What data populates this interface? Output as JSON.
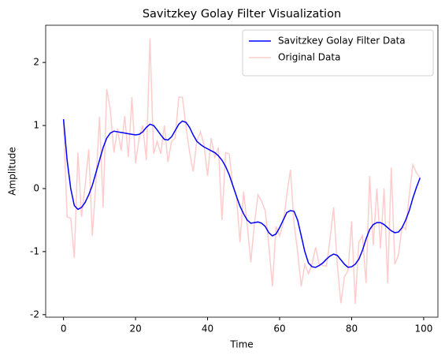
{
  "chart_data": {
    "type": "line",
    "title": "Savitzkey Golay Filter Visualization",
    "x_label": "Time",
    "y_label": "Amplitude",
    "x": [
      0,
      1,
      2,
      3,
      4,
      5,
      6,
      7,
      8,
      9,
      10,
      11,
      12,
      13,
      14,
      15,
      16,
      17,
      18,
      19,
      20,
      21,
      22,
      23,
      24,
      25,
      26,
      27,
      28,
      29,
      30,
      31,
      32,
      33,
      34,
      35,
      36,
      37,
      38,
      39,
      40,
      41,
      42,
      43,
      44,
      45,
      46,
      47,
      48,
      49,
      50,
      51,
      52,
      53,
      54,
      55,
      56,
      57,
      58,
      59,
      60,
      61,
      62,
      63,
      64,
      65,
      66,
      67,
      68,
      69,
      70,
      71,
      72,
      73,
      74,
      75,
      76,
      77,
      78,
      79,
      80,
      81,
      82,
      83,
      84,
      85,
      86,
      87,
      88,
      89,
      90,
      91,
      92,
      93,
      94,
      95,
      96,
      97,
      98,
      99
    ],
    "series": [
      {
        "name": "Savitzkey Golay Filter Data",
        "color": "#0000ff",
        "values": [
          1.1,
          0.45,
          0.0,
          -0.27,
          -0.33,
          -0.3,
          -0.22,
          -0.1,
          0.05,
          0.25,
          0.45,
          0.65,
          0.8,
          0.88,
          0.91,
          0.9,
          0.89,
          0.88,
          0.87,
          0.86,
          0.85,
          0.86,
          0.9,
          0.97,
          1.02,
          1.0,
          0.93,
          0.85,
          0.78,
          0.77,
          0.82,
          0.92,
          1.02,
          1.07,
          1.05,
          0.97,
          0.85,
          0.75,
          0.7,
          0.66,
          0.63,
          0.6,
          0.57,
          0.52,
          0.45,
          0.35,
          0.22,
          0.05,
          -0.12,
          -0.28,
          -0.4,
          -0.5,
          -0.55,
          -0.54,
          -0.53,
          -0.55,
          -0.6,
          -0.7,
          -0.75,
          -0.72,
          -0.62,
          -0.5,
          -0.38,
          -0.35,
          -0.36,
          -0.5,
          -0.75,
          -1.0,
          -1.18,
          -1.24,
          -1.25,
          -1.22,
          -1.18,
          -1.12,
          -1.07,
          -1.04,
          -1.06,
          -1.13,
          -1.2,
          -1.25,
          -1.24,
          -1.2,
          -1.12,
          -0.98,
          -0.8,
          -0.65,
          -0.57,
          -0.54,
          -0.54,
          -0.57,
          -0.62,
          -0.67,
          -0.7,
          -0.69,
          -0.62,
          -0.5,
          -0.35,
          -0.15,
          0.02,
          0.17
        ]
      },
      {
        "name": "Original Data",
        "color": "#ffcccc",
        "values": [
          1.1,
          -0.45,
          -0.47,
          -1.1,
          0.57,
          -0.45,
          0.05,
          0.62,
          -0.75,
          0.1,
          1.14,
          -0.3,
          1.58,
          1.25,
          0.57,
          0.95,
          0.6,
          1.15,
          0.5,
          1.45,
          0.4,
          0.8,
          1.0,
          0.45,
          2.38,
          0.55,
          0.75,
          0.55,
          1.0,
          0.42,
          0.75,
          0.8,
          1.45,
          1.45,
          0.98,
          0.58,
          0.27,
          0.75,
          0.9,
          0.7,
          0.2,
          0.8,
          0.5,
          0.65,
          -0.5,
          0.57,
          0.55,
          0.05,
          -0.1,
          -0.85,
          -0.05,
          -0.57,
          -1.17,
          -0.55,
          -0.1,
          -0.2,
          -0.35,
          -0.9,
          -1.55,
          -0.6,
          -0.75,
          -0.55,
          -0.1,
          0.3,
          -0.55,
          -1.0,
          -1.55,
          -1.2,
          -1.35,
          -1.2,
          -0.93,
          -1.2,
          -1.22,
          -1.23,
          -0.8,
          -0.3,
          -1.2,
          -1.82,
          -1.4,
          -1.3,
          -0.52,
          -1.83,
          -0.85,
          -0.75,
          -1.5,
          0.2,
          -0.9,
          0.0,
          -0.95,
          0.0,
          -1.5,
          0.33,
          -1.2,
          -1.05,
          -0.6,
          -0.65,
          -0.1,
          0.38,
          0.25,
          0.17
        ]
      }
    ],
    "xlim": [
      -4.95,
      103.95
    ],
    "ylim": [
      -2.04,
      2.59
    ],
    "xticks": [
      0,
      20,
      40,
      60,
      80,
      100
    ],
    "yticks": [
      -2,
      -1,
      0,
      1,
      2
    ],
    "legend": "upper right"
  }
}
